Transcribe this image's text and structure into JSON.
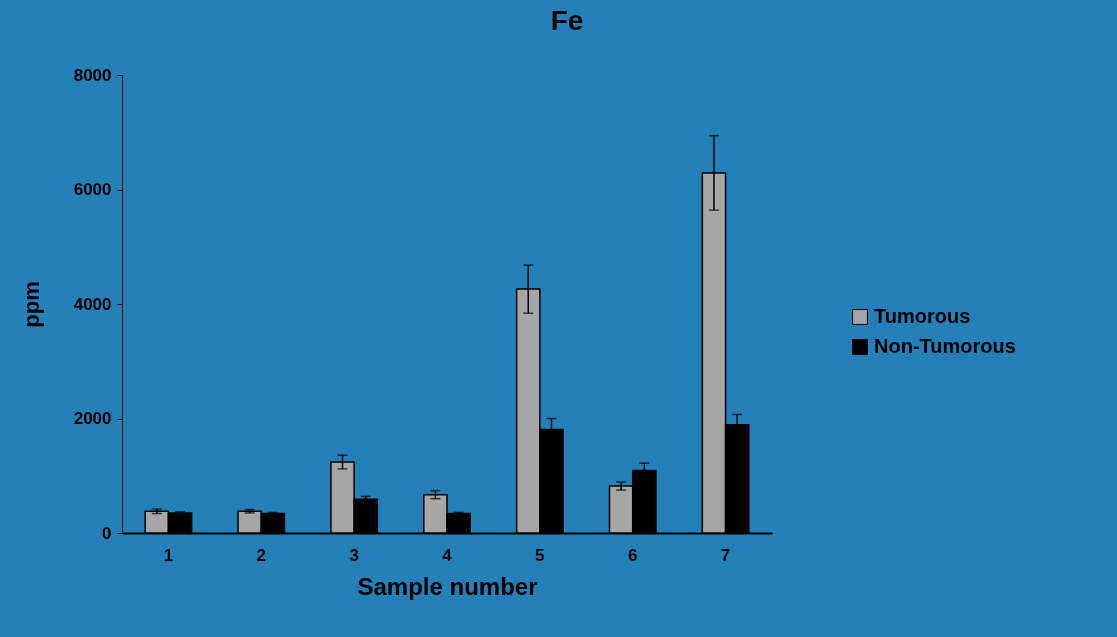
{
  "chart_data": {
    "type": "bar",
    "title": "Fe",
    "xlabel": "Sample number",
    "ylabel": "ppm",
    "categories": [
      "1",
      "2",
      "3",
      "4",
      "5",
      "6",
      "7"
    ],
    "series": [
      {
        "name": "Tumorous",
        "color": "#a6a6a6",
        "values": [
          380,
          380,
          1240,
          670,
          4260,
          820,
          6290
        ],
        "errors": [
          40,
          30,
          120,
          70,
          420,
          70,
          650
        ]
      },
      {
        "name": "Non-Tumorous",
        "color": "#000000",
        "values": [
          350,
          340,
          590,
          340,
          1810,
          1090,
          1890
        ],
        "errors": [
          20,
          20,
          50,
          20,
          190,
          130,
          180
        ]
      }
    ],
    "ylim": [
      0,
      8000
    ],
    "yticks": [
      0,
      2000,
      4000,
      6000,
      8000
    ],
    "grid": false,
    "legend": "right"
  }
}
